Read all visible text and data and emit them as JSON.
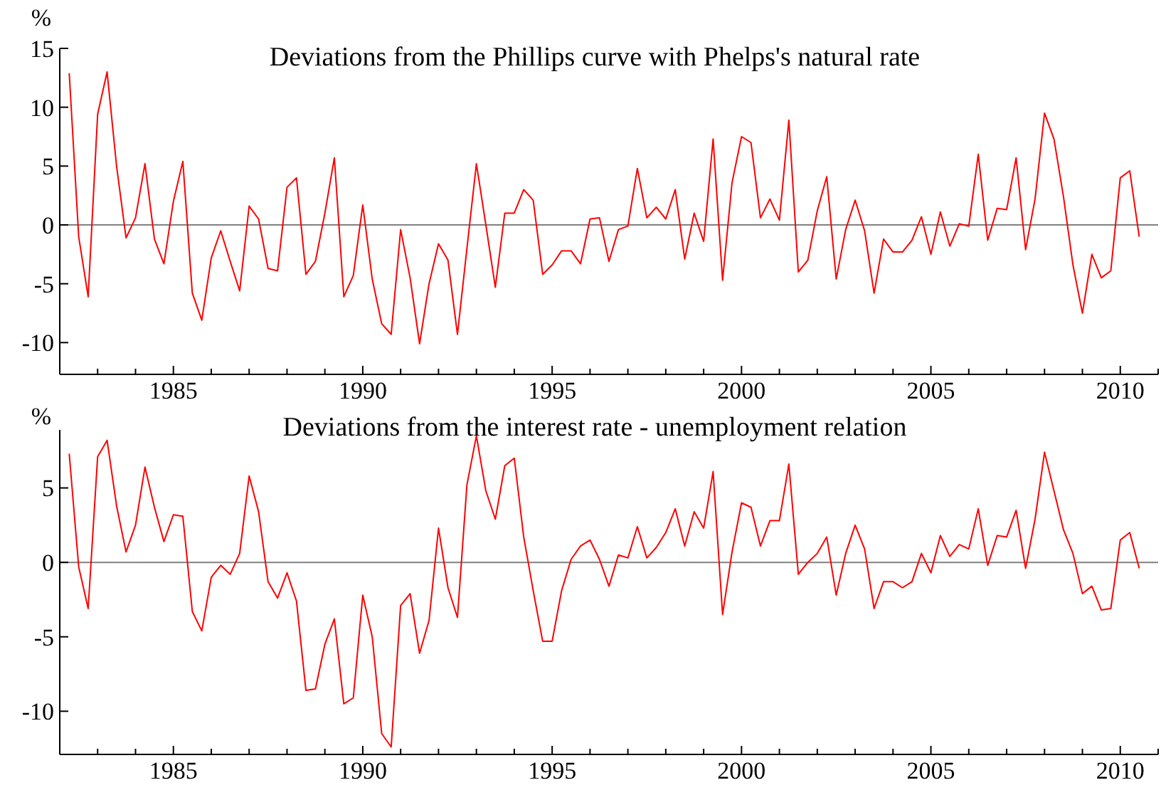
{
  "chart_data": [
    {
      "type": "line",
      "title": "Deviations from the Phillips curve with Phelps's natural rate",
      "ylabel": "%",
      "xlim": [
        1982,
        2011
      ],
      "xticks": [
        {
          "value": 1983,
          "label": null
        },
        {
          "value": 1984,
          "label": null
        },
        1985,
        {
          "value": 1986,
          "label": null
        },
        {
          "value": 1987,
          "label": null
        },
        {
          "value": 1988,
          "label": null
        },
        {
          "value": 1989,
          "label": null
        },
        1990,
        {
          "value": 1991,
          "label": null
        },
        {
          "value": 1992,
          "label": null
        },
        {
          "value": 1993,
          "label": null
        },
        {
          "value": 1994,
          "label": null
        },
        1995,
        {
          "value": 1996,
          "label": null
        },
        {
          "value": 1997,
          "label": null
        },
        {
          "value": 1998,
          "label": null
        },
        {
          "value": 1999,
          "label": null
        },
        2000,
        {
          "value": 2001,
          "label": null
        },
        {
          "value": 2002,
          "label": null
        },
        {
          "value": 2003,
          "label": null
        },
        {
          "value": 2004,
          "label": null
        },
        2005,
        {
          "value": 2006,
          "label": null
        },
        {
          "value": 2007,
          "label": null
        },
        {
          "value": 2008,
          "label": null
        },
        {
          "value": 2009,
          "label": null
        },
        2010,
        {
          "value": 2011,
          "label": null
        }
      ],
      "ylim": [
        -12.7,
        15
      ],
      "yticks": [
        -10,
        -5,
        0,
        5,
        10,
        15
      ],
      "grid": false,
      "marker": "none",
      "line_style": "solid",
      "ref_lines": [
        {
          "axis": "y",
          "value": 0,
          "color": "#808080"
        }
      ],
      "x": [
        1982.25,
        1982.5,
        1982.75,
        1983,
        1983.25,
        1983.5,
        1983.75,
        1984,
        1984.25,
        1984.5,
        1984.75,
        1985,
        1985.25,
        1985.5,
        1985.75,
        1986,
        1986.25,
        1986.5,
        1986.75,
        1987,
        1987.25,
        1987.5,
        1987.75,
        1988,
        1988.25,
        1988.5,
        1988.75,
        1989,
        1989.25,
        1989.5,
        1989.75,
        1990,
        1990.25,
        1990.5,
        1990.75,
        1991,
        1991.25,
        1991.5,
        1991.75,
        1992,
        1992.25,
        1992.5,
        1992.75,
        1993,
        1993.25,
        1993.5,
        1993.75,
        1994,
        1994.25,
        1994.5,
        1994.75,
        1995,
        1995.25,
        1995.5,
        1995.75,
        1996,
        1996.25,
        1996.5,
        1996.75,
        1997,
        1997.25,
        1997.5,
        1997.75,
        1998,
        1998.25,
        1998.5,
        1998.75,
        1999,
        1999.25,
        1999.5,
        1999.75,
        2000,
        2000.25,
        2000.5,
        2000.75,
        2001,
        2001.25,
        2001.5,
        2001.75,
        2002,
        2002.25,
        2002.5,
        2002.75,
        2003,
        2003.25,
        2003.5,
        2003.75,
        2004,
        2004.25,
        2004.5,
        2004.75,
        2005,
        2005.25,
        2005.5,
        2005.75,
        2006,
        2006.25,
        2006.5,
        2006.75,
        2007,
        2007.25,
        2007.5,
        2007.75,
        2008,
        2008.25,
        2008.5,
        2008.75,
        2009,
        2009.25,
        2009.5,
        2009.75,
        2010,
        2010.25,
        2010.5
      ],
      "series": [
        {
          "color": "#ff0000",
          "values": [
            12.9,
            -1.0,
            -6.1,
            9.4,
            13.0,
            5.0,
            -1.1,
            0.6,
            5.2,
            -1.2,
            -3.3,
            2.0,
            5.4,
            -5.8,
            -8.1,
            -2.8,
            -0.5,
            -3.1,
            -5.6,
            1.6,
            0.5,
            -3.7,
            -3.9,
            3.2,
            4.0,
            -4.2,
            -3.1,
            1.0,
            5.7,
            -6.1,
            -4.3,
            1.7,
            -4.6,
            -8.4,
            -9.3,
            -0.4,
            -4.5,
            -10.1,
            -5.0,
            -1.6,
            -3.0,
            -9.3,
            -2.0,
            5.2,
            0.0,
            -5.3,
            1.0,
            1.0,
            3.0,
            2.1,
            -4.2,
            -3.4,
            -2.2,
            -2.2,
            -3.3,
            0.5,
            0.6,
            -3.1,
            -0.4,
            -0.1,
            4.8,
            0.6,
            1.5,
            0.5,
            3.0,
            -2.9,
            1.0,
            -1.4,
            7.3,
            -4.7,
            3.6,
            7.5,
            7.0,
            0.6,
            2.2,
            0.4,
            8.9,
            -4.0,
            -3.0,
            1.2,
            4.1,
            -4.6,
            -0.4,
            2.1,
            -0.5,
            -5.8,
            -1.2,
            -2.3,
            -2.3,
            -1.3,
            0.7,
            -2.5,
            1.1,
            -1.8,
            0.1,
            -0.1,
            6.0,
            -1.3,
            1.4,
            1.3,
            5.7,
            -2.1,
            2.2,
            9.5,
            7.3,
            2.4,
            -3.4,
            -7.5,
            -2.5,
            -4.5,
            -3.9,
            4.0,
            4.6,
            -1.0
          ]
        }
      ]
    },
    {
      "type": "line",
      "title": "Deviations from the interest rate - unemployment relation",
      "ylabel": "%",
      "xlim": [
        1982,
        2011
      ],
      "xticks": [
        {
          "value": 1983,
          "label": null
        },
        {
          "value": 1984,
          "label": null
        },
        1985,
        {
          "value": 1986,
          "label": null
        },
        {
          "value": 1987,
          "label": null
        },
        {
          "value": 1988,
          "label": null
        },
        {
          "value": 1989,
          "label": null
        },
        1990,
        {
          "value": 1991,
          "label": null
        },
        {
          "value": 1992,
          "label": null
        },
        {
          "value": 1993,
          "label": null
        },
        {
          "value": 1994,
          "label": null
        },
        1995,
        {
          "value": 1996,
          "label": null
        },
        {
          "value": 1997,
          "label": null
        },
        {
          "value": 1998,
          "label": null
        },
        {
          "value": 1999,
          "label": null
        },
        2000,
        {
          "value": 2001,
          "label": null
        },
        {
          "value": 2002,
          "label": null
        },
        {
          "value": 2003,
          "label": null
        },
        {
          "value": 2004,
          "label": null
        },
        2005,
        {
          "value": 2006,
          "label": null
        },
        {
          "value": 2007,
          "label": null
        },
        {
          "value": 2008,
          "label": null
        },
        {
          "value": 2009,
          "label": null
        },
        2010,
        {
          "value": 2011,
          "label": null
        }
      ],
      "ylim": [
        -12.9,
        8.9
      ],
      "yticks": [
        -10,
        -5,
        0,
        5
      ],
      "grid": false,
      "marker": "none",
      "line_style": "solid",
      "ref_lines": [
        {
          "axis": "y",
          "value": 0,
          "color": "#808080"
        }
      ],
      "x": [
        1982.25,
        1982.5,
        1982.75,
        1983,
        1983.25,
        1983.5,
        1983.75,
        1984,
        1984.25,
        1984.5,
        1984.75,
        1985,
        1985.25,
        1985.5,
        1985.75,
        1986,
        1986.25,
        1986.5,
        1986.75,
        1987,
        1987.25,
        1987.5,
        1987.75,
        1988,
        1988.25,
        1988.5,
        1988.75,
        1989,
        1989.25,
        1989.5,
        1989.75,
        1990,
        1990.25,
        1990.5,
        1990.75,
        1991,
        1991.25,
        1991.5,
        1991.75,
        1992,
        1992.25,
        1992.5,
        1992.75,
        1993,
        1993.25,
        1993.5,
        1993.75,
        1994,
        1994.25,
        1994.5,
        1994.75,
        1995,
        1995.25,
        1995.5,
        1995.75,
        1996,
        1996.25,
        1996.5,
        1996.75,
        1997,
        1997.25,
        1997.5,
        1997.75,
        1998,
        1998.25,
        1998.5,
        1998.75,
        1999,
        1999.25,
        1999.5,
        1999.75,
        2000,
        2000.25,
        2000.5,
        2000.75,
        2001,
        2001.25,
        2001.5,
        2001.75,
        2002,
        2002.25,
        2002.5,
        2002.75,
        2003,
        2003.25,
        2003.5,
        2003.75,
        2004,
        2004.25,
        2004.5,
        2004.75,
        2005,
        2005.25,
        2005.5,
        2005.75,
        2006,
        2006.25,
        2006.5,
        2006.75,
        2007,
        2007.25,
        2007.5,
        2007.75,
        2008,
        2008.25,
        2008.5,
        2008.75,
        2009,
        2009.25,
        2009.5,
        2009.75,
        2010,
        2010.25,
        2010.5
      ],
      "series": [
        {
          "color": "#ff0000",
          "values": [
            7.3,
            -0.3,
            -3.1,
            7.1,
            8.2,
            3.8,
            0.7,
            2.5,
            6.4,
            3.7,
            1.4,
            3.2,
            3.1,
            -3.3,
            -4.6,
            -1.0,
            -0.2,
            -0.8,
            0.6,
            5.8,
            3.4,
            -1.3,
            -2.4,
            -0.7,
            -2.6,
            -8.6,
            -8.5,
            -5.5,
            -3.8,
            -9.5,
            -9.1,
            -2.2,
            -5.0,
            -11.5,
            -12.4,
            -2.9,
            -2.1,
            -6.1,
            -3.9,
            2.3,
            -1.7,
            -3.7,
            5.2,
            8.5,
            4.8,
            2.9,
            6.5,
            7.0,
            1.7,
            -1.9,
            -5.3,
            -5.3,
            -1.9,
            0.2,
            1.1,
            1.5,
            0.2,
            -1.6,
            0.5,
            0.3,
            2.4,
            0.3,
            1.0,
            2.0,
            3.6,
            1.1,
            3.4,
            2.3,
            6.1,
            -3.5,
            0.7,
            4.0,
            3.7,
            1.1,
            2.8,
            2.8,
            6.6,
            -0.8,
            0.0,
            0.6,
            1.7,
            -2.2,
            0.6,
            2.5,
            0.9,
            -3.1,
            -1.3,
            -1.3,
            -1.7,
            -1.3,
            0.6,
            -0.7,
            1.8,
            0.4,
            1.2,
            0.9,
            3.6,
            -0.2,
            1.8,
            1.7,
            3.5,
            -0.4,
            2.9,
            7.4,
            4.8,
            2.2,
            0.6,
            -2.1,
            -1.6,
            -3.2,
            -3.1,
            1.5,
            2.0,
            -0.4
          ]
        }
      ]
    }
  ]
}
